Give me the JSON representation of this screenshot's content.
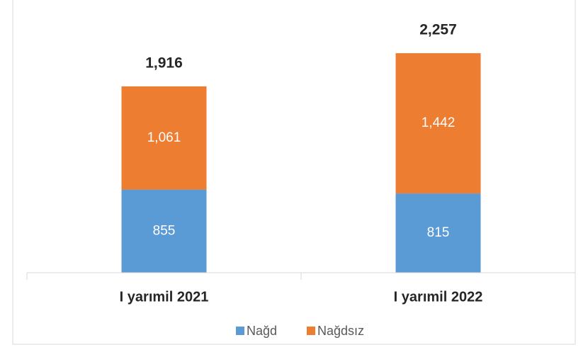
{
  "chart_data": {
    "type": "stacked_bar",
    "categories": [
      "I yarımil 2021",
      "I yarımil 2022"
    ],
    "series": [
      {
        "name": "Nağd",
        "color": "#5b9bd5",
        "values": [
          855,
          815
        ]
      },
      {
        "name": "Nağdsız",
        "color": "#ed7d31",
        "values": [
          1061,
          1442
        ],
        "value_labels": [
          "1,061",
          "1,442"
        ]
      }
    ],
    "totals": [
      1916,
      2257
    ],
    "total_labels": [
      "1,916",
      "2,257"
    ],
    "ylim": [
      0,
      2600
    ],
    "legend": "bottom"
  }
}
